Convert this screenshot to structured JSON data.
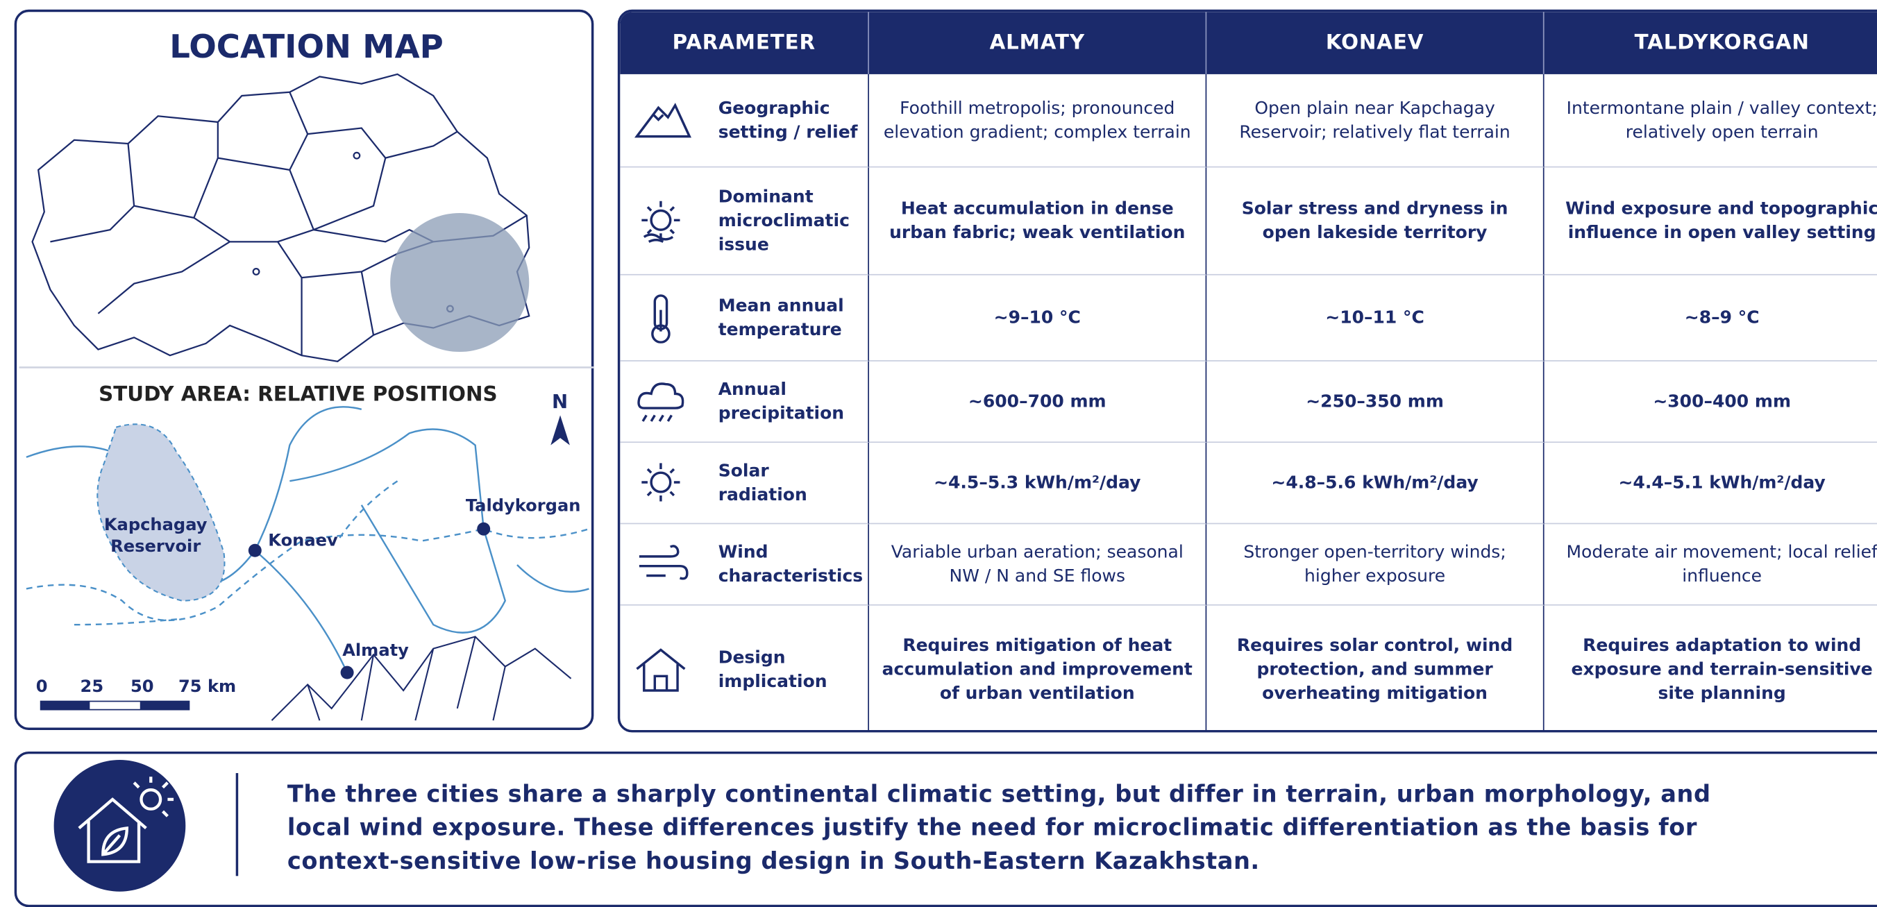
{
  "map": {
    "title": "LOCATION MAP",
    "subtitle": "STUDY AREA: RELATIVE POSITIONS",
    "north": "N",
    "places": {
      "reservoir": "Kapchagay Reservoir",
      "konaev": "Konaev",
      "taldykorgan": "Taldykorgan",
      "almaty": "Almaty"
    },
    "scale": [
      "0",
      "25",
      "50",
      "75 km"
    ]
  },
  "table": {
    "header": [
      "PARAMETER",
      "ALMATY",
      "KONAEV",
      "TALDYKORGAN"
    ],
    "rows": [
      [
        "Geographic setting / relief",
        "Foothill metropolis; pronounced elevation gradient; complex terrain",
        "Open plain near Kapchagay Reservoir; relatively flat terrain",
        "Intermontane plain / valley context; relatively open terrain"
      ],
      [
        "Dominant microclimatic issue",
        "Heat accumulation in dense urban fabric; weak ventilation",
        "Solar stress and dryness in open lakeside territory",
        "Wind exposure and topographic influence in open valley setting"
      ],
      [
        "Mean annual temperature",
        "~9–10 °C",
        "~10–11 °C",
        "~8–9 °C"
      ],
      [
        "Annual precipitation",
        "~600–700 mm",
        "~250–350 mm",
        "~300–400 mm"
      ],
      [
        "Solar radiation",
        "~4.5–5.3 kWh/m²/day",
        "~4.8–5.6 kWh/m²/day",
        "~4.4–5.1 kWh/m²/day"
      ],
      [
        "Wind characteristics",
        "Variable urban aeration; seasonal NW / N and SE flows",
        "Stronger open-territory winds; higher exposure",
        "Moderate air movement; local relief influence"
      ],
      [
        "Design implication",
        "Requires mitigation of heat accumulation and improvement of urban ventilation",
        "Requires solar control, wind protection, and summer overheating mitigation",
        "Requires adaptation to wind exposure and terrain-sensitive site planning"
      ]
    ]
  },
  "footer": {
    "text": "The three cities share a sharply continental climatic setting, but differ in terrain, urban morphology, and local wind exposure. These differences justify the need for microclimatic differentiation as the basis for context-sensitive low-rise housing design in South-Eastern Kazakhstan."
  }
}
